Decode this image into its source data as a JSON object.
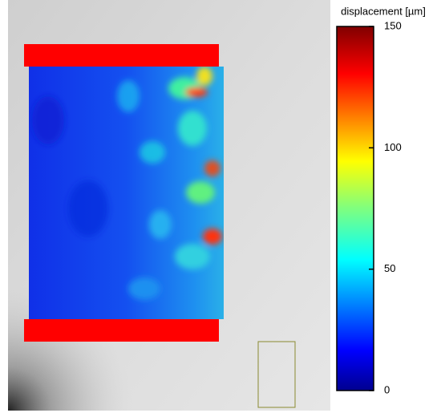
{
  "chart_data": {
    "type": "colorbar",
    "colorbar_label": "displacement [µm]",
    "clim": [
      0,
      150
    ],
    "ticks": [
      0,
      50,
      100,
      150
    ],
    "colormap": "jet"
  }
}
